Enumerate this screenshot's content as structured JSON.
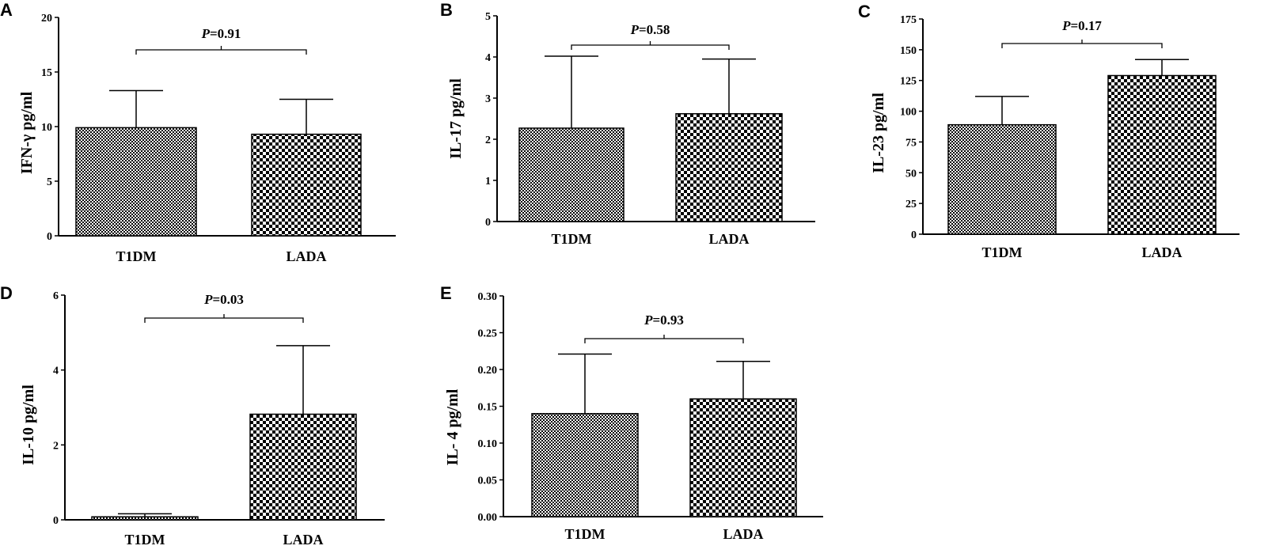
{
  "chart_data": [
    {
      "panel": "A",
      "type": "bar",
      "categories": [
        "T1DM",
        "LADA"
      ],
      "values": [
        9.9,
        9.3
      ],
      "error": [
        3.4,
        3.2
      ],
      "ylabel": "IFN-γ pg/ml",
      "ylim": [
        0,
        20
      ],
      "yticks": [
        "0",
        "5",
        "10",
        "15",
        "20"
      ],
      "p_prefix": "P",
      "p_value": "=0.91",
      "patterns": [
        "fine-check",
        "coarse-check"
      ]
    },
    {
      "panel": "B",
      "type": "bar",
      "categories": [
        "T1DM",
        "LADA"
      ],
      "values": [
        2.27,
        2.62
      ],
      "error": [
        1.75,
        1.33
      ],
      "ylabel": "IL-17 pg/ml",
      "ylim": [
        0,
        5
      ],
      "yticks": [
        "0",
        "1",
        "2",
        "3",
        "4",
        "5"
      ],
      "p_prefix": "P",
      "p_value": "=0.58",
      "patterns": [
        "fine-check",
        "coarse-check"
      ]
    },
    {
      "panel": "C",
      "type": "bar",
      "categories": [
        "T1DM",
        "LADA"
      ],
      "values": [
        89,
        129
      ],
      "error": [
        23,
        13
      ],
      "ylabel": "IL-23 pg/ml",
      "ylim": [
        0,
        175
      ],
      "yticks": [
        "0",
        "25",
        "50",
        "75",
        "100",
        "125",
        "150",
        "175"
      ],
      "p_prefix": "P",
      "p_value": "=0.17",
      "patterns": [
        "fine-check",
        "coarse-check"
      ]
    },
    {
      "panel": "D",
      "type": "bar",
      "categories": [
        "T1DM",
        "LADA"
      ],
      "values": [
        0.08,
        2.82
      ],
      "error": [
        0.08,
        1.83
      ],
      "ylabel": "IL-10 pg/ml",
      "ylim": [
        0,
        6
      ],
      "yticks": [
        "0",
        "2",
        "4",
        "6"
      ],
      "p_prefix": "P",
      "p_value": "=0.03",
      "patterns": [
        "fine-check",
        "coarse-check"
      ]
    },
    {
      "panel": "E",
      "type": "bar",
      "categories": [
        "T1DM",
        "LADA"
      ],
      "values": [
        0.14,
        0.16
      ],
      "error": [
        0.081,
        0.051
      ],
      "ylabel": "IL- 4 pg/ml",
      "ylim": [
        0,
        0.3
      ],
      "yticks": [
        "0.00",
        "0.05",
        "0.10",
        "0.15",
        "0.20",
        "0.25",
        "0.30"
      ],
      "p_prefix": "P",
      "p_value": "=0.93",
      "patterns": [
        "fine-check",
        "coarse-check"
      ]
    }
  ],
  "colors": {
    "ink": "#000000",
    "background": "#ffffff"
  }
}
